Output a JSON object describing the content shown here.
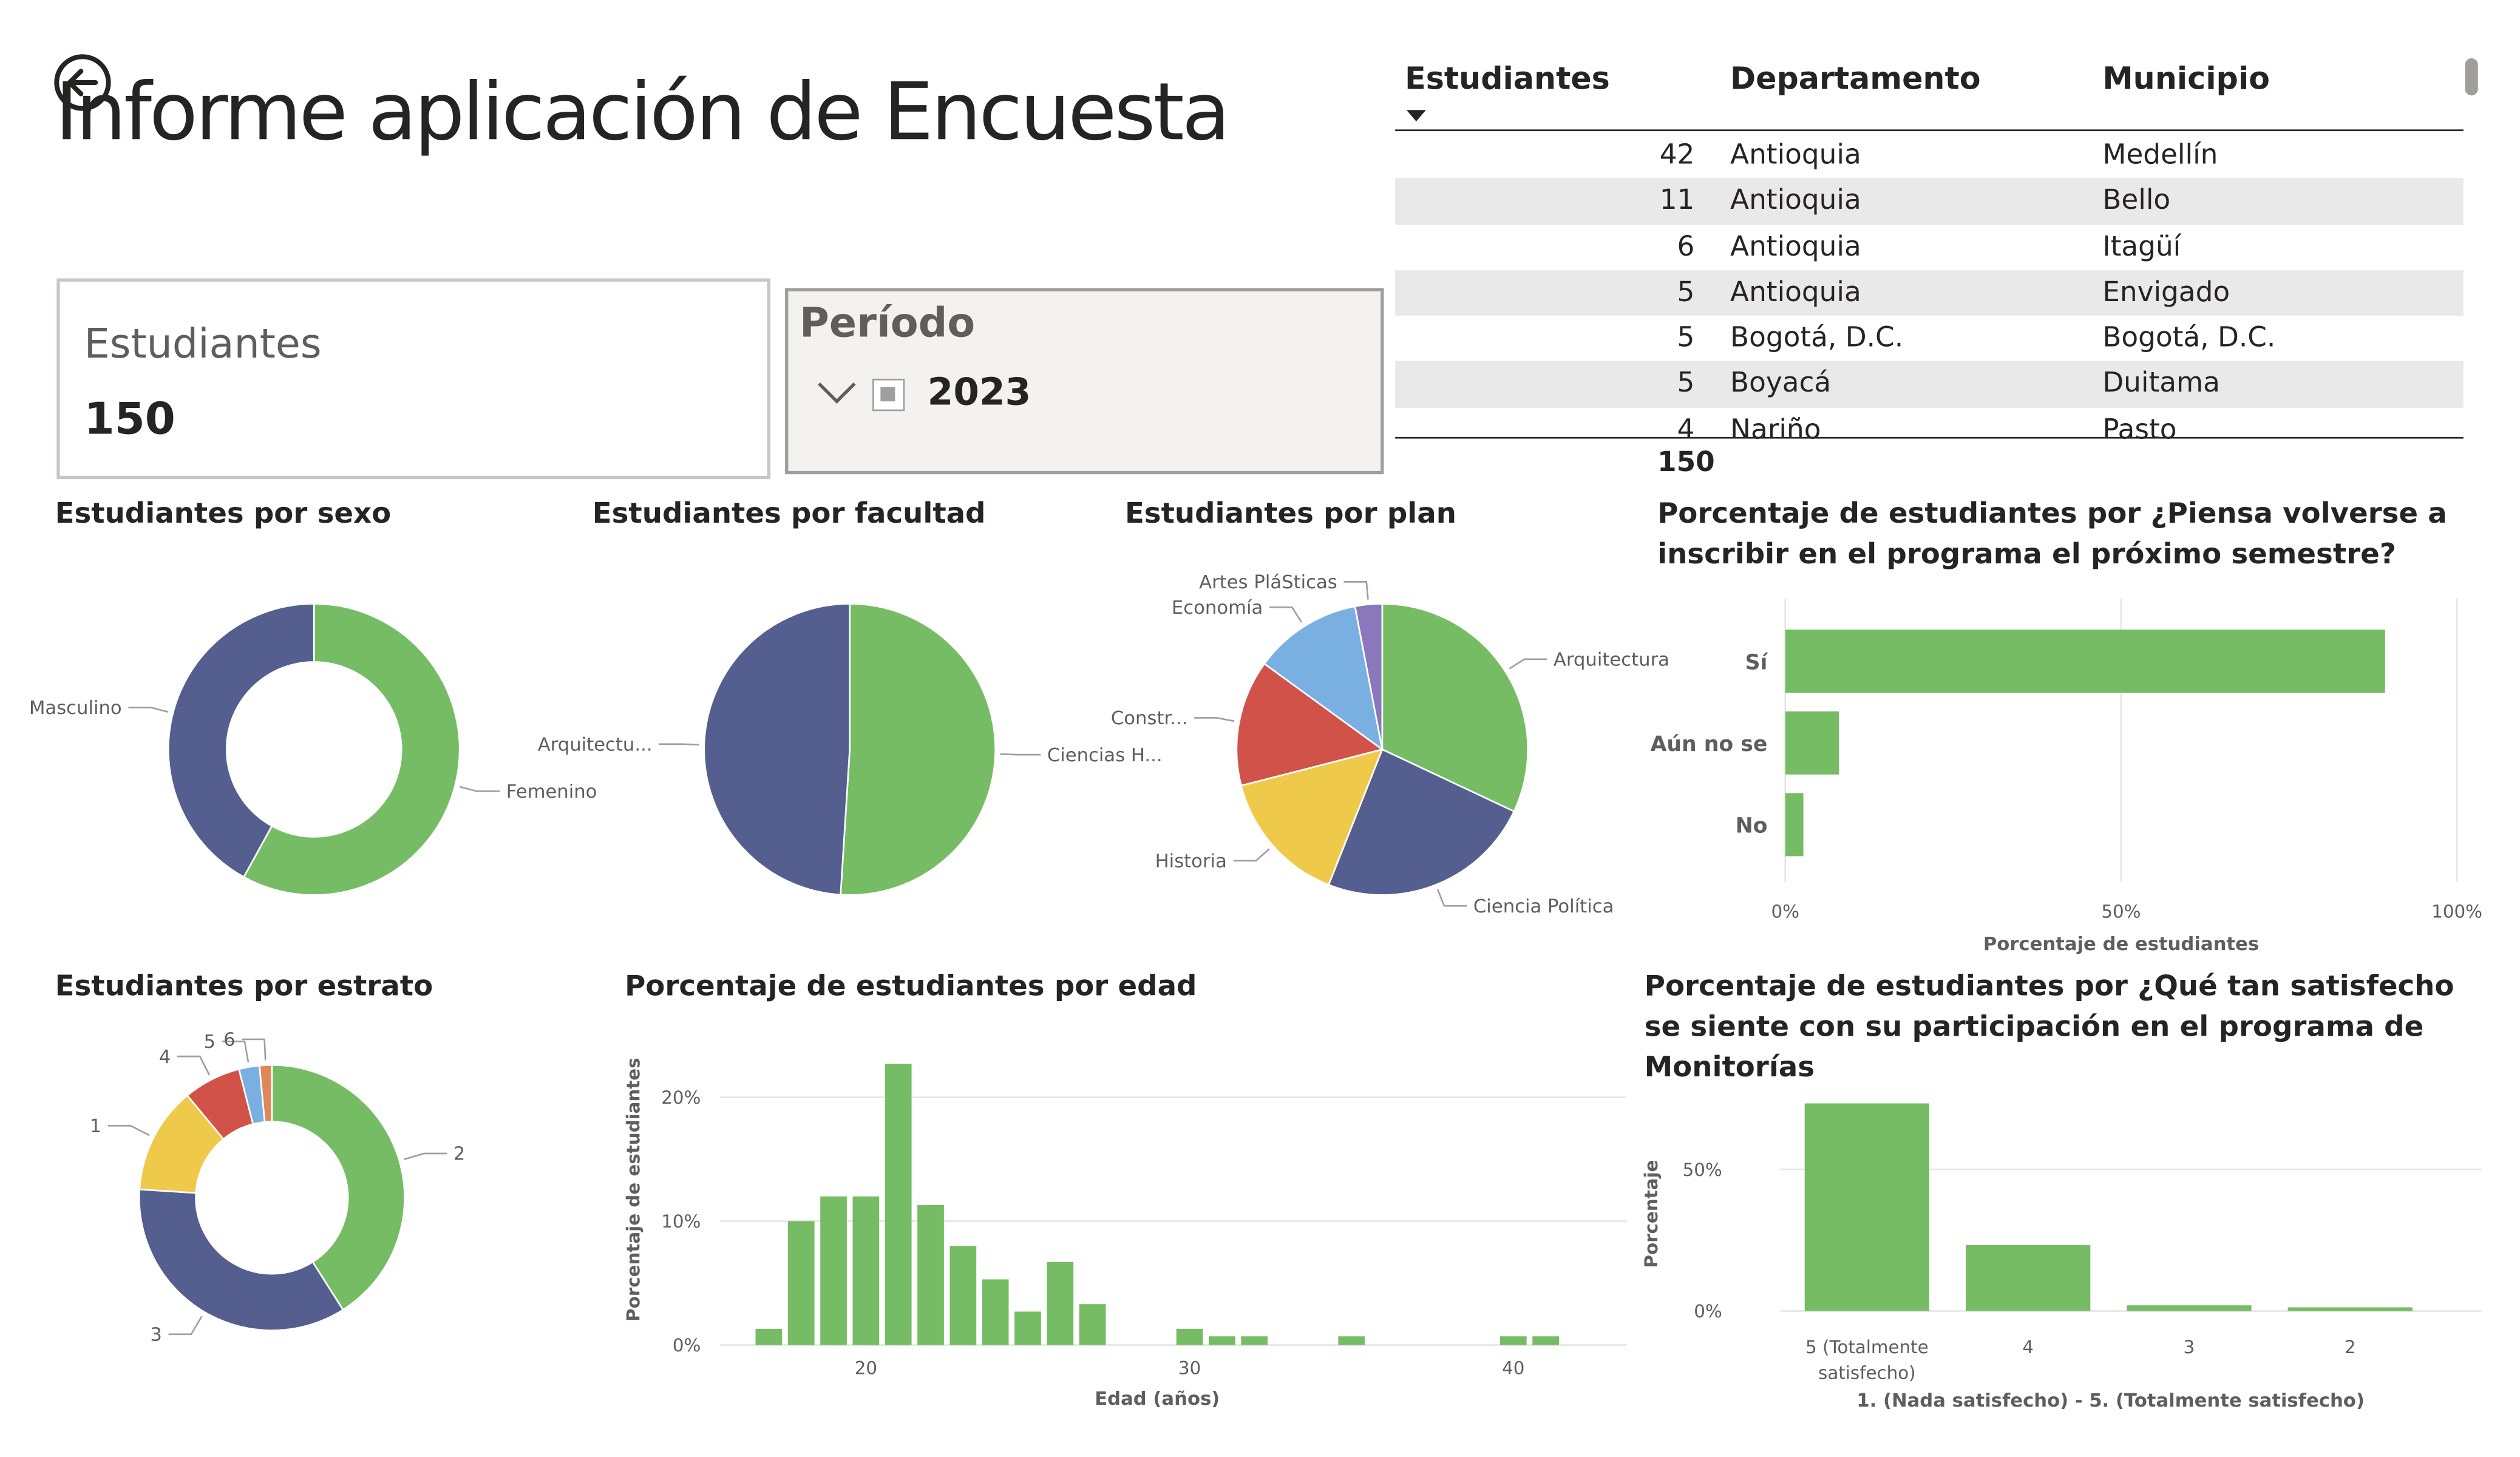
{
  "report": {
    "title": "Informe aplicación de Encuesta",
    "back_icon": "back-arrow-icon"
  },
  "card": {
    "label": "Estudiantes",
    "value": "150"
  },
  "slicer": {
    "label": "Período",
    "value": "2023",
    "icon": "chevron-down-icon"
  },
  "table": {
    "headers": [
      "Estudiantes",
      "Departamento",
      "Municipio"
    ],
    "sort_icon": "sort-descending-icon",
    "rows": [
      [
        "42",
        "Antioquia",
        "Medellín"
      ],
      [
        "11",
        "Antioquia",
        "Bello"
      ],
      [
        "6",
        "Antioquia",
        "Itagüí"
      ],
      [
        "5",
        "Antioquia",
        "Envigado"
      ],
      [
        "5",
        "Bogotá, D.C.",
        "Bogotá, D.C."
      ],
      [
        "5",
        "Boyacá",
        "Duitama"
      ],
      [
        "4",
        "Nariño",
        "Pasto"
      ]
    ],
    "total": "150"
  },
  "chart_data": [
    {
      "id": "sexo",
      "type": "pie",
      "donut": true,
      "title": "Estudiantes por sexo",
      "categories": [
        "Femenino",
        "Masculino"
      ],
      "values": [
        58,
        42
      ],
      "colors": [
        "#76bc64",
        "#545e8f"
      ]
    },
    {
      "id": "facultad",
      "type": "pie",
      "donut": false,
      "title": "Estudiantes por facultad",
      "categories": [
        "Ciencias H...",
        "Arquitectu..."
      ],
      "values": [
        51,
        49
      ],
      "colors": [
        "#76bc64",
        "#545e8f"
      ]
    },
    {
      "id": "plan",
      "type": "pie",
      "donut": false,
      "title": "Estudiantes por plan",
      "categories": [
        "Arquitectura",
        "Ciencia Política",
        "Historia",
        "Constr...",
        "Economía",
        "Artes PláSticas"
      ],
      "values": [
        32,
        24,
        15,
        14,
        12,
        3
      ],
      "colors": [
        "#76bc64",
        "#545e8f",
        "#eec94a",
        "#d15249",
        "#7ab0e1",
        "#8b77bb"
      ]
    },
    {
      "id": "inscribir",
      "type": "bar",
      "orientation": "horizontal",
      "title": "Porcentaje de estudiantes por ¿Piensa volverse a inscribir en el programa el próximo semestre?",
      "categories": [
        "Sí",
        "Aún no se",
        "No"
      ],
      "values": [
        89.3,
        8.0,
        2.7
      ],
      "xlabel": "Porcentaje de estudiantes",
      "xticks": [
        "0%",
        "50%",
        "100%"
      ],
      "xlim": [
        0,
        100
      ],
      "color": "#76bc64"
    },
    {
      "id": "estrato",
      "type": "pie",
      "donut": true,
      "title": "Estudiantes por estrato",
      "categories": [
        "2",
        "3",
        "1",
        "4",
        "5",
        "6"
      ],
      "values": [
        41,
        35,
        13,
        7,
        2.5,
        1.5
      ],
      "colors": [
        "#76bc64",
        "#545e8f",
        "#eec94a",
        "#d15249",
        "#7ab0e1",
        "#e0875a"
      ]
    },
    {
      "id": "edad",
      "type": "bar",
      "orientation": "vertical",
      "title": "Porcentaje de estudiantes por edad",
      "xlabel": "Edad (años)",
      "ylabel": "Porcentaje de estudiantes",
      "x": [
        17,
        18,
        19,
        20,
        21,
        22,
        23,
        24,
        25,
        26,
        27,
        30,
        31,
        32,
        35,
        40,
        41
      ],
      "values": [
        1.3,
        10.0,
        12.0,
        12.0,
        22.7,
        11.3,
        8.0,
        5.3,
        2.7,
        6.7,
        3.3,
        1.3,
        0.7,
        0.7,
        0.7,
        0.7,
        0.7
      ],
      "xticks": [
        "20",
        "30",
        "40"
      ],
      "yticks": [
        "0%",
        "10%",
        "20%"
      ],
      "xlim": [
        15.5,
        43.5
      ],
      "ylim": [
        0,
        23
      ],
      "color": "#76bc64"
    },
    {
      "id": "satisfecho",
      "type": "bar",
      "orientation": "vertical",
      "title": "Porcentaje de estudiantes por ¿Qué tan satisfecho se siente con su participación en el programa de Monitorías",
      "categories": [
        "5 (Totalmente satisfecho)",
        "4",
        "3",
        "2"
      ],
      "values": [
        73.3,
        23.3,
        2.0,
        1.3
      ],
      "xlabel": "1. (Nada satisfecho) - 5. (Totalmente satisfecho)",
      "ylabel": "Porcentaje",
      "yticks": [
        "0%",
        "50%"
      ],
      "ylim": [
        0,
        80
      ],
      "color": "#76bc64"
    }
  ]
}
